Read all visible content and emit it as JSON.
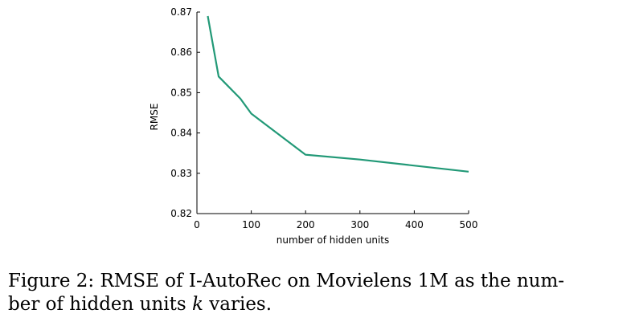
{
  "chart_data": {
    "type": "line",
    "xlabel": "number of hidden units",
    "ylabel": "RMSE",
    "xlim": [
      0,
      500
    ],
    "ylim": [
      0.82,
      0.87
    ],
    "xticks": [
      0,
      100,
      200,
      300,
      400,
      500
    ],
    "xtick_labels": [
      "0",
      "100",
      "200",
      "300",
      "400",
      "500"
    ],
    "yticks": [
      0.82,
      0.83,
      0.84,
      0.85,
      0.86,
      0.87
    ],
    "ytick_labels": [
      "0.82",
      "0.83",
      "0.84",
      "0.85",
      "0.86",
      "0.87"
    ],
    "grid": false,
    "series": [
      {
        "color": "#229977",
        "x": [
          20,
          40,
          80,
          100,
          200,
          300,
          500
        ],
        "y": [
          0.869,
          0.854,
          0.8485,
          0.8448,
          0.8346,
          0.8334,
          0.8304
        ]
      }
    ]
  },
  "caption": {
    "line1": "Figure 2: RMSE of I-AutoRec on Movielens 1M as the num-",
    "line2_pre": "ber of hidden units ",
    "line2_var": "k",
    "line2_post": " varies."
  }
}
